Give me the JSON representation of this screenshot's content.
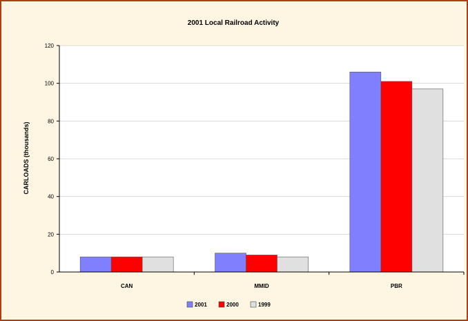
{
  "chart_data": {
    "type": "bar",
    "title": "2001 Local Railroad Activity",
    "xlabel": "",
    "ylabel": "CARLOADS (thousands)",
    "ylim": [
      0,
      120
    ],
    "yticks": [
      0,
      20,
      40,
      60,
      80,
      100,
      120
    ],
    "grid": true,
    "legend_position": "bottom",
    "categories": [
      "CAN",
      "MMID",
      "PBR"
    ],
    "series": [
      {
        "name": "2001",
        "color": "#8080ff",
        "values": [
          8,
          10,
          106
        ]
      },
      {
        "name": "2000",
        "color": "#ff0000",
        "values": [
          8,
          9,
          101
        ]
      },
      {
        "name": "1999",
        "color": "#e0e0e0",
        "values": [
          8,
          8,
          97
        ]
      }
    ]
  }
}
